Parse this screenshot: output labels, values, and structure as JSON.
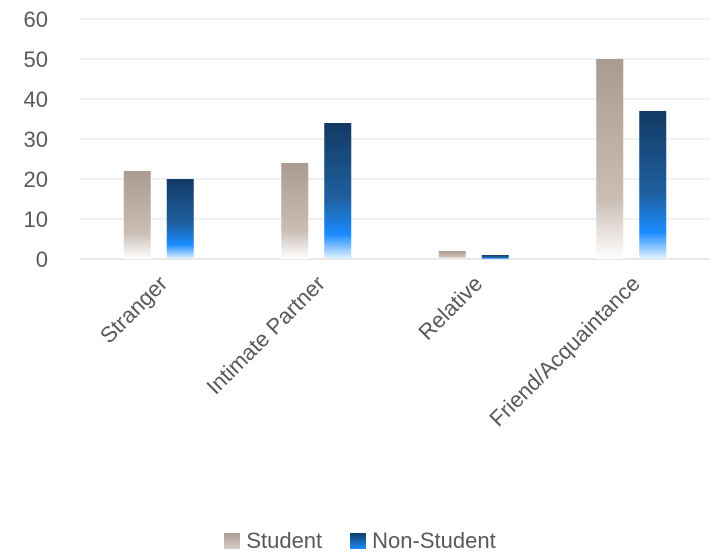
{
  "chart_data": {
    "type": "bar",
    "categories": [
      "Stranger",
      "Intimate Partner",
      "Relative",
      "Friend/Acquaintance"
    ],
    "series": [
      {
        "name": "Student",
        "values": [
          22,
          24,
          2,
          50
        ]
      },
      {
        "name": "Non-Student",
        "values": [
          20,
          34,
          1,
          37
        ]
      }
    ],
    "ylim": [
      0,
      60
    ],
    "yticks": [
      0,
      10,
      20,
      30,
      40,
      50,
      60
    ],
    "grid": true,
    "legend_position": "bottom",
    "colors": {
      "student_top": "#a99b91",
      "student_bottom": "#ffffff",
      "nonstudent_top": "#123a63",
      "nonstudent_mid": "#1a8cff",
      "nonstudent_bottom": "#e6f3ff"
    }
  }
}
